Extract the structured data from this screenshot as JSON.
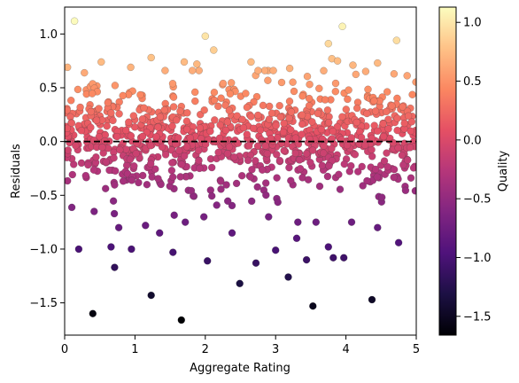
{
  "chart_data": {
    "type": "scatter",
    "title": "",
    "xlabel": "Aggregate Rating",
    "ylabel": "Residuals",
    "colorbar_label": "Quality",
    "colormap": "magma",
    "xlim": [
      0,
      5
    ],
    "ylim": [
      -1.8,
      1.25
    ],
    "color_range": [
      -1.66,
      1.13
    ],
    "x_ticks": [
      0,
      1,
      2,
      3,
      4,
      5
    ],
    "x_tick_labels": [
      "0",
      "1",
      "2",
      "3",
      "4",
      "5"
    ],
    "y_ticks": [
      -1.5,
      -1.0,
      -0.5,
      0.0,
      0.5,
      1.0
    ],
    "y_tick_labels": [
      "−1.5",
      "−1.0",
      "−0.5",
      "0.0",
      "0.5",
      "1.0"
    ],
    "colorbar_ticks": [
      -1.5,
      -1.0,
      -0.5,
      0.0,
      0.5,
      1.0
    ],
    "colorbar_tick_labels": [
      "−1.5",
      "−1.0",
      "−0.5",
      "0.0",
      "0.5",
      "1.0"
    ],
    "reference_line": {
      "y": 0.0,
      "style": "dashed",
      "color": "#000000"
    },
    "grid": false,
    "point_count": 1000,
    "points": [
      [
        0.14,
        1.12
      ],
      [
        2.0,
        0.98
      ],
      [
        3.95,
        1.07
      ],
      [
        4.72,
        0.94
      ],
      [
        3.75,
        0.91
      ],
      [
        2.12,
        0.85
      ],
      [
        1.23,
        0.78
      ],
      [
        3.8,
        0.77
      ],
      [
        3.88,
        0.75
      ],
      [
        0.52,
        0.74
      ],
      [
        0.04,
        0.69
      ],
      [
        1.7,
        0.74
      ],
      [
        4.45,
        0.73
      ],
      [
        1.88,
        0.72
      ],
      [
        0.94,
        0.69
      ],
      [
        2.65,
        0.74
      ],
      [
        3.2,
        0.68
      ],
      [
        4.1,
        0.71
      ],
      [
        0.4,
        -1.6
      ],
      [
        1.66,
        -1.66
      ],
      [
        3.53,
        -1.53
      ],
      [
        4.37,
        -1.47
      ],
      [
        1.23,
        -1.43
      ],
      [
        2.49,
        -1.32
      ],
      [
        3.18,
        -1.26
      ],
      [
        2.72,
        -1.13
      ],
      [
        2.03,
        -1.11
      ],
      [
        3.82,
        -1.08
      ],
      [
        3.97,
        -1.08
      ],
      [
        0.71,
        -1.17
      ],
      [
        0.2,
        -1.0
      ],
      [
        0.66,
        -0.98
      ],
      [
        0.95,
        -1.0
      ],
      [
        1.54,
        -1.03
      ],
      [
        3.0,
        -1.01
      ],
      [
        4.75,
        -0.94
      ],
      [
        3.75,
        -0.98
      ],
      [
        3.44,
        -1.1
      ],
      [
        0.42,
        -0.65
      ],
      [
        0.77,
        -0.8
      ],
      [
        1.15,
        -0.78
      ],
      [
        1.35,
        -0.85
      ],
      [
        2.38,
        -0.85
      ],
      [
        4.08,
        -0.75
      ],
      [
        4.45,
        -0.8
      ],
      [
        1.98,
        -0.7
      ],
      [
        2.9,
        -0.7
      ],
      [
        3.3,
        -0.9
      ]
    ]
  }
}
